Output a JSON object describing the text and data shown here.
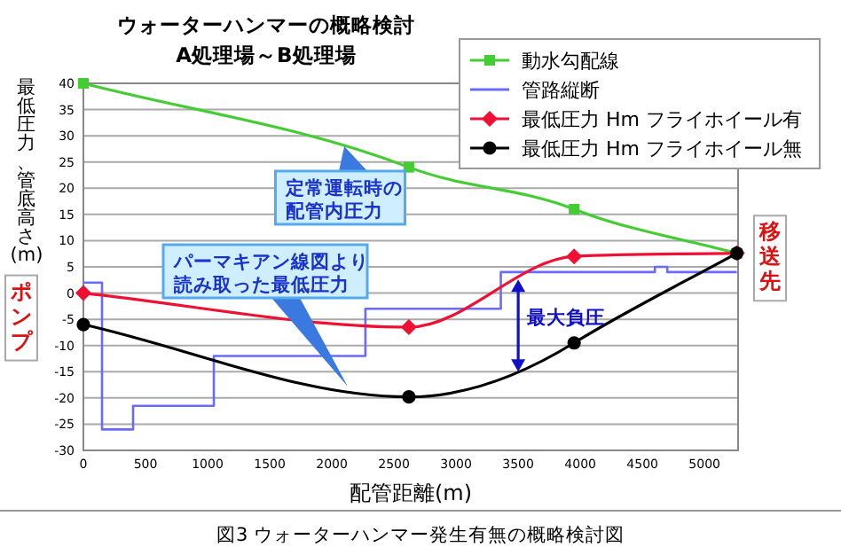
{
  "chart_data": {
    "type": "line",
    "title": "ウォーターハンマーの概略検討",
    "subtitle": "A処理場～B処理場",
    "xlabel": "配管距離(m)",
    "ylabel": "最低圧力、管底高さ(m)",
    "xlim": [
      0,
      5270
    ],
    "ylim": [
      -30,
      40
    ],
    "xticks": [
      0,
      500,
      1000,
      1500,
      2000,
      2500,
      3000,
      3500,
      4000,
      4500,
      5000
    ],
    "yticks": [
      -30,
      -25,
      -20,
      -15,
      -10,
      -5,
      0,
      5,
      10,
      15,
      20,
      25,
      30,
      35,
      40
    ],
    "grid": "y",
    "legend": "top right",
    "series": [
      {
        "name": "動水勾配線",
        "color": "#44cc33",
        "marker": "square",
        "x": [
          0,
          2620,
          3950,
          5260
        ],
        "values": [
          40,
          24,
          16,
          7.6
        ]
      },
      {
        "name": "管路縦断",
        "color": "#6a6aff",
        "marker": "none",
        "x": [
          0,
          150,
          150,
          400,
          400,
          1050,
          1050,
          2270,
          2270,
          3360,
          3360,
          4600,
          4600,
          4700,
          4700,
          5260
        ],
        "values": [
          2,
          2,
          -26,
          -26,
          -21.5,
          -21.5,
          -12,
          -12,
          -3,
          -3,
          4,
          4,
          5,
          5,
          4,
          4
        ]
      },
      {
        "name": "最低圧力 Hm フライホイール有",
        "color": "#ee1133",
        "marker": "diamond",
        "x": [
          0,
          2620,
          3950,
          5260
        ],
        "values": [
          0,
          -6.5,
          7,
          7.6
        ]
      },
      {
        "name": "最低圧力 Hm フライホイール無",
        "color": "#000000",
        "marker": "circle",
        "x": [
          0,
          2620,
          3950,
          5260
        ],
        "values": [
          -6,
          -19.8,
          -9.5,
          7.6
        ]
      }
    ],
    "annotations": [
      {
        "text": "定常運転時の配管内圧力",
        "x": 2100,
        "y": 28
      },
      "パーマキアン線図より読み取った最低圧力",
      {
        "text": "最大負圧",
        "x": 3500,
        "y": -15
      },
      {
        "text": "ポンプ",
        "x": 0,
        "y": 0
      },
      {
        "text": "移送先",
        "x": 5260,
        "y": 8
      },
      "図3 ウォーターハンマー発生有無の概略検討図"
    ]
  }
}
